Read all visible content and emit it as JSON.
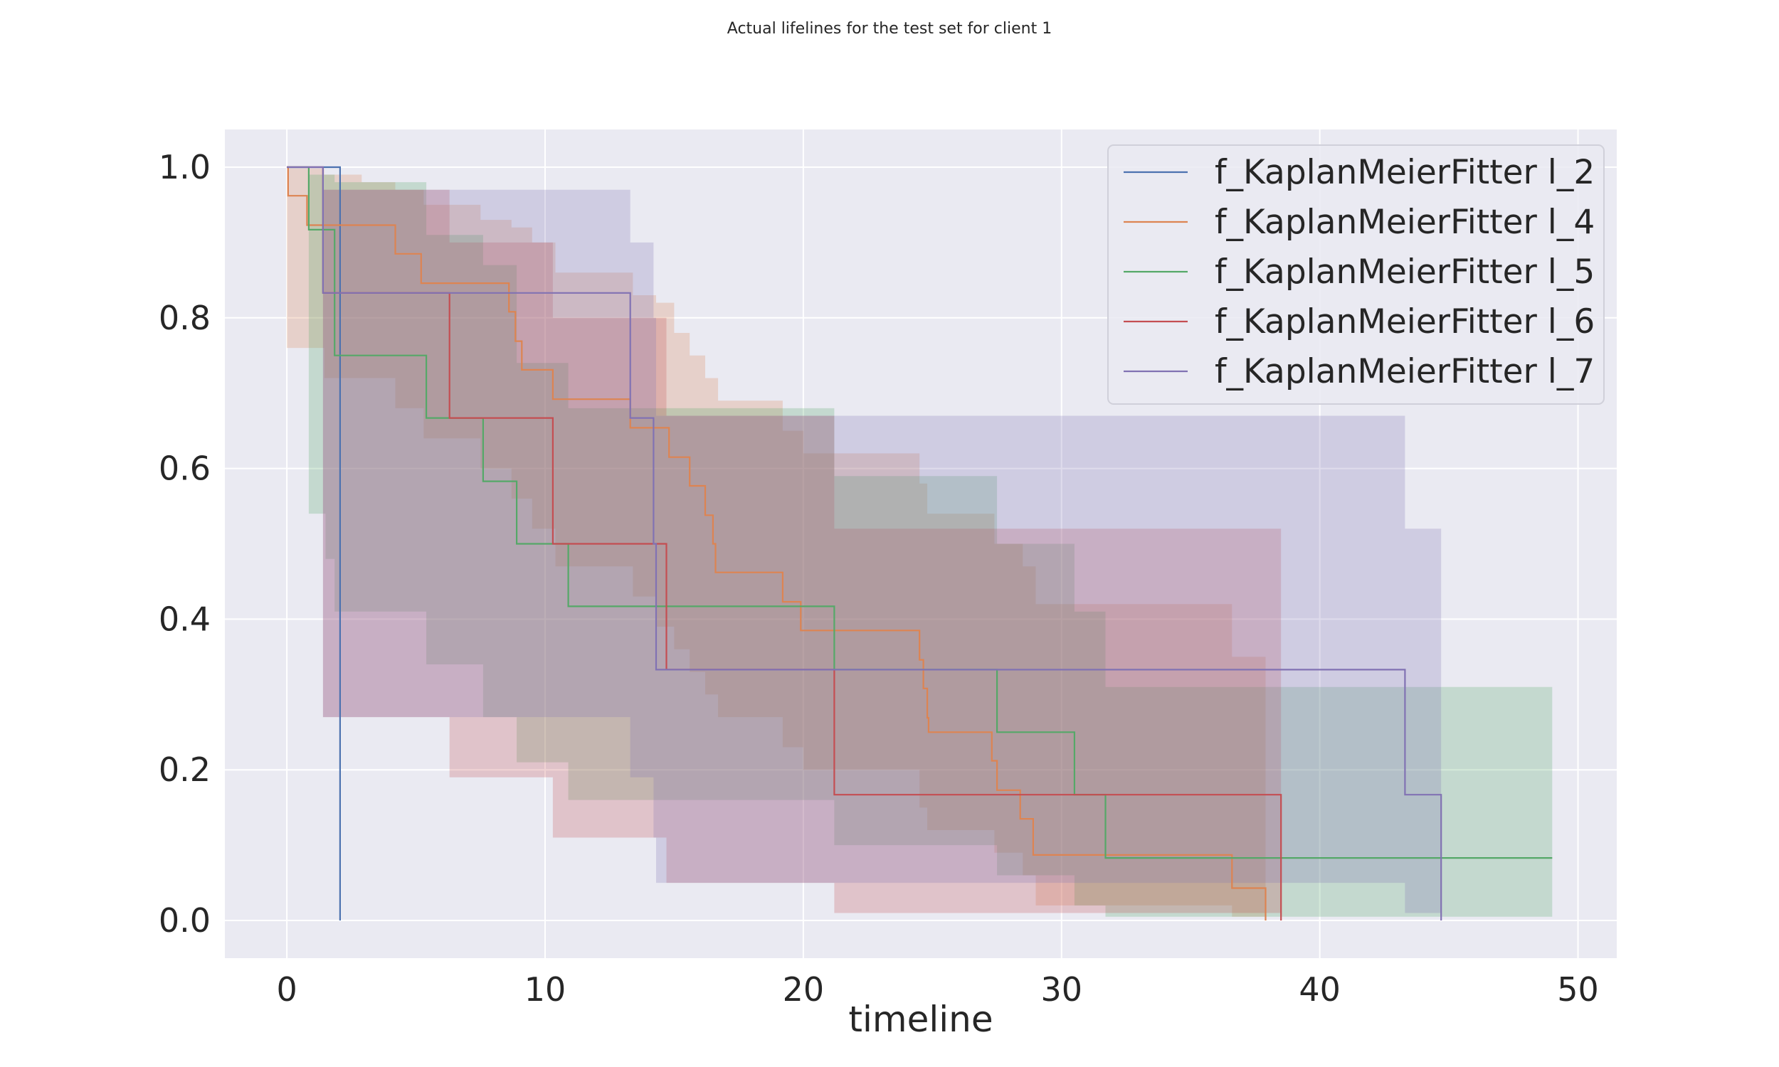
{
  "chart_data": {
    "type": "line",
    "title": "Actual lifelines for the test set for client 1",
    "xlabel": "timeline",
    "ylabel": "",
    "xlim": [
      -2.4,
      51.5
    ],
    "ylim": [
      -0.05,
      1.05
    ],
    "xticks": [
      0,
      10,
      20,
      30,
      40,
      50
    ],
    "yticks": [
      0.0,
      0.2,
      0.4,
      0.6,
      0.8,
      1.0
    ],
    "xtick_labels": [
      "0",
      "10",
      "20",
      "30",
      "40",
      "50"
    ],
    "ytick_labels": [
      "0.0",
      "0.2",
      "0.4",
      "0.6",
      "0.8",
      "1.0"
    ],
    "grid": true,
    "legend_position": "top-right",
    "series": [
      {
        "name": "f_KaplanMeierFitter l_2",
        "color": "#4c72b0",
        "steps": [
          [
            0,
            1.0
          ],
          [
            2.06,
            0.0
          ]
        ],
        "ci": []
      },
      {
        "name": "f_KaplanMeierFitter l_4",
        "color": "#dd8452",
        "steps": [
          [
            0,
            1.0
          ],
          [
            0.05,
            0.962
          ],
          [
            0.78,
            0.923
          ],
          [
            1.45,
            0.923
          ],
          [
            4.2,
            0.885
          ],
          [
            5.2,
            0.846
          ],
          [
            8.6,
            0.808
          ],
          [
            8.85,
            0.769
          ],
          [
            9.1,
            0.731
          ],
          [
            10.3,
            0.692
          ],
          [
            13.3,
            0.654
          ],
          [
            14.8,
            0.615
          ],
          [
            15.6,
            0.577
          ],
          [
            16.2,
            0.538
          ],
          [
            16.5,
            0.5
          ],
          [
            16.6,
            0.462
          ],
          [
            19.2,
            0.423
          ],
          [
            19.9,
            0.385
          ],
          [
            24.5,
            0.346
          ],
          [
            24.65,
            0.308
          ],
          [
            24.8,
            0.269
          ],
          [
            24.85,
            0.25
          ],
          [
            27.3,
            0.212
          ],
          [
            27.5,
            0.173
          ],
          [
            28.4,
            0.135
          ],
          [
            28.9,
            0.087
          ],
          [
            36.6,
            0.043
          ],
          [
            37.9,
            0.0
          ]
        ],
        "ci": [
          [
            0,
            0.76,
            0.998
          ],
          [
            1.45,
            0.72,
            0.99
          ],
          [
            2.9,
            0.72,
            0.98
          ],
          [
            4.2,
            0.68,
            0.97
          ],
          [
            5.3,
            0.64,
            0.95
          ],
          [
            7.5,
            0.6,
            0.93
          ],
          [
            8.7,
            0.56,
            0.92
          ],
          [
            9.5,
            0.52,
            0.9
          ],
          [
            10.4,
            0.47,
            0.86
          ],
          [
            13.4,
            0.43,
            0.83
          ],
          [
            14.3,
            0.39,
            0.82
          ],
          [
            15,
            0.36,
            0.78
          ],
          [
            15.6,
            0.33,
            0.75
          ],
          [
            16.2,
            0.3,
            0.72
          ],
          [
            16.7,
            0.27,
            0.69
          ],
          [
            19.2,
            0.23,
            0.65
          ],
          [
            20,
            0.2,
            0.62
          ],
          [
            24.5,
            0.15,
            0.58
          ],
          [
            24.8,
            0.12,
            0.54
          ],
          [
            27.4,
            0.09,
            0.5
          ],
          [
            28.5,
            0.06,
            0.47
          ],
          [
            29,
            0.02,
            0.42
          ],
          [
            36.6,
            0.005,
            0.35
          ],
          [
            37.9,
            0.005,
            0.35
          ]
        ]
      },
      {
        "name": "f_KaplanMeierFitter l_5",
        "color": "#55a868",
        "steps": [
          [
            0,
            1.0
          ],
          [
            0.85,
            0.917
          ],
          [
            1.85,
            0.833
          ],
          [
            1.85,
            0.75
          ],
          [
            5.4,
            0.667
          ],
          [
            7.6,
            0.583
          ],
          [
            8.9,
            0.5
          ],
          [
            10.9,
            0.417
          ],
          [
            21.2,
            0.333
          ],
          [
            27.5,
            0.25
          ],
          [
            30.5,
            0.167
          ],
          [
            31.7,
            0.083
          ],
          [
            49.0,
            0.083
          ]
        ],
        "ci": [
          [
            0.85,
            0.54,
            0.99
          ],
          [
            1.5,
            0.48,
            0.99
          ],
          [
            1.85,
            0.41,
            0.98
          ],
          [
            5.4,
            0.34,
            0.91
          ],
          [
            7.6,
            0.27,
            0.87
          ],
          [
            8.9,
            0.21,
            0.74
          ],
          [
            10.9,
            0.16,
            0.68
          ],
          [
            21.2,
            0.1,
            0.59
          ],
          [
            27.5,
            0.06,
            0.5
          ],
          [
            30.5,
            0.02,
            0.41
          ],
          [
            31.7,
            0.005,
            0.31
          ],
          [
            49.0,
            0.005,
            0.31
          ]
        ]
      },
      {
        "name": "f_KaplanMeierFitter l_6",
        "color": "#c44e52",
        "steps": [
          [
            0,
            1.0
          ],
          [
            1.4,
            0.833
          ],
          [
            6.3,
            0.667
          ],
          [
            10.3,
            0.5
          ],
          [
            14.7,
            0.333
          ],
          [
            21.2,
            0.167
          ],
          [
            38.5,
            0.0
          ]
        ],
        "ci": [
          [
            1.4,
            0.27,
            0.97
          ],
          [
            6.3,
            0.19,
            0.9
          ],
          [
            10.3,
            0.11,
            0.8
          ],
          [
            14.7,
            0.05,
            0.67
          ],
          [
            21.2,
            0.01,
            0.52
          ],
          [
            38.5,
            0.01,
            0.52
          ]
        ]
      },
      {
        "name": "f_KaplanMeierFitter l_7",
        "color": "#8172b3",
        "steps": [
          [
            0,
            1.0
          ],
          [
            1.4,
            0.833
          ],
          [
            13.3,
            0.667
          ],
          [
            14.2,
            0.5
          ],
          [
            14.3,
            0.333
          ],
          [
            43.3,
            0.167
          ],
          [
            44.7,
            0.0
          ]
        ],
        "ci": [
          [
            1.4,
            0.27,
            0.97
          ],
          [
            13.3,
            0.19,
            0.9
          ],
          [
            14.2,
            0.11,
            0.8
          ],
          [
            14.3,
            0.05,
            0.67
          ],
          [
            43.3,
            0.01,
            0.52
          ],
          [
            44.7,
            0.01,
            0.52
          ]
        ]
      }
    ]
  }
}
